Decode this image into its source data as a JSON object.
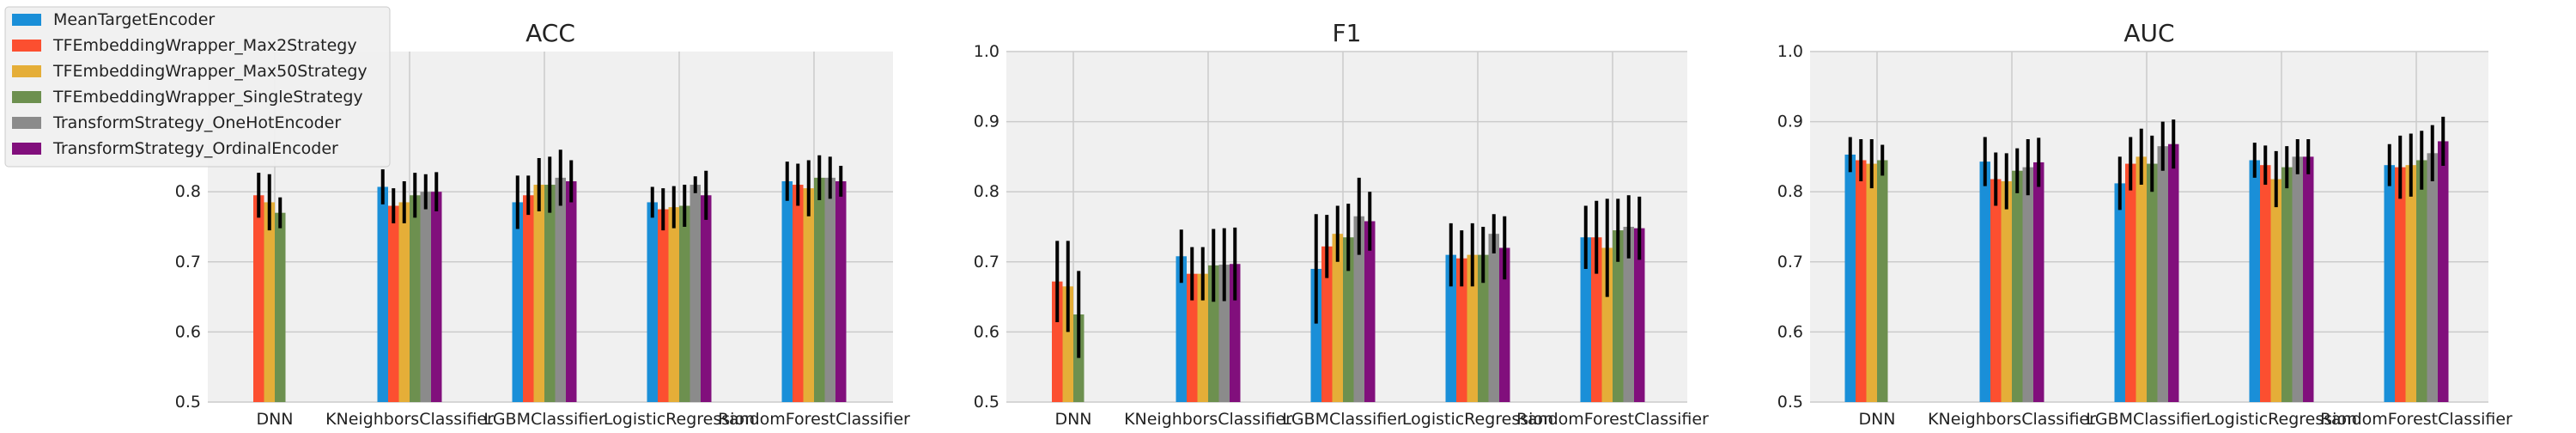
{
  "colors": {
    "MeanTargetEncoder": "#1a8fd8",
    "TFEmbeddingWrapper_Max2Strategy": "#fc4f30",
    "TFEmbeddingWrapper_Max50Strategy": "#e5ae38",
    "TFEmbeddingWrapper_SingleStrategy": "#6d904f",
    "TransformStrategy_OneHotEncoder": "#8b8b8b",
    "TransformStrategy_OrdinalEncoder": "#810f7c",
    "plot_background": "#f0f0f0",
    "grid": "#cbcbcb",
    "error_bar": "#000000"
  },
  "legend": {
    "placement": "upper-left",
    "entries": [
      "MeanTargetEncoder",
      "TFEmbeddingWrapper_Max2Strategy",
      "TFEmbeddingWrapper_Max50Strategy",
      "TFEmbeddingWrapper_SingleStrategy",
      "TransformStrategy_OneHotEncoder",
      "TransformStrategy_OrdinalEncoder"
    ]
  },
  "chart_data": [
    {
      "type": "bar",
      "title": "ACC",
      "xlabel": "",
      "ylabel": "",
      "ylim": [
        0.5,
        1.0
      ],
      "yticks": [
        "0.5",
        "0.6",
        "0.7",
        "0.8"
      ],
      "grid": true,
      "categories": [
        "DNN",
        "KNeighborsClassifier",
        "LGBMClassifier",
        "LogisticRegression",
        "RandomForestClassifier"
      ],
      "series": [
        {
          "name": "MeanTargetEncoder",
          "values": [
            null,
            0.807,
            0.785,
            0.785,
            0.815
          ],
          "errors": [
            null,
            0.025,
            0.038,
            0.022,
            0.028
          ]
        },
        {
          "name": "TFEmbeddingWrapper_Max2Strategy",
          "values": [
            0.795,
            0.78,
            0.795,
            0.775,
            0.81
          ],
          "errors": [
            0.032,
            0.025,
            0.028,
            0.03,
            0.03
          ]
        },
        {
          "name": "TFEmbeddingWrapper_Max50Strategy",
          "values": [
            0.785,
            0.785,
            0.81,
            0.778,
            0.805
          ],
          "errors": [
            0.04,
            0.03,
            0.038,
            0.03,
            0.04
          ]
        },
        {
          "name": "TFEmbeddingWrapper_SingleStrategy",
          "values": [
            0.77,
            0.795,
            0.81,
            0.78,
            0.82
          ],
          "errors": [
            0.022,
            0.032,
            0.04,
            0.03,
            0.032
          ]
        },
        {
          "name": "TransformStrategy_OneHotEncoder",
          "values": [
            null,
            0.8,
            0.82,
            0.81,
            0.82
          ],
          "errors": [
            null,
            0.025,
            0.04,
            0.012,
            0.03
          ]
        },
        {
          "name": "TransformStrategy_OrdinalEncoder",
          "values": [
            null,
            0.8,
            0.815,
            0.795,
            0.815
          ],
          "errors": [
            null,
            0.028,
            0.03,
            0.035,
            0.022
          ]
        }
      ]
    },
    {
      "type": "bar",
      "title": "F1",
      "xlabel": "",
      "ylabel": "",
      "ylim": [
        0.5,
        1.0
      ],
      "yticks": [
        "0.5",
        "0.6",
        "0.7",
        "0.8",
        "0.9",
        "1.0"
      ],
      "grid": true,
      "categories": [
        "DNN",
        "KNeighborsClassifier",
        "LGBMClassifier",
        "LogisticRegression",
        "RandomForestClassifier"
      ],
      "series": [
        {
          "name": "MeanTargetEncoder",
          "values": [
            null,
            0.708,
            0.69,
            0.71,
            0.735
          ],
          "errors": [
            null,
            0.038,
            0.078,
            0.045,
            0.045
          ]
        },
        {
          "name": "TFEmbeddingWrapper_Max2Strategy",
          "values": [
            0.672,
            0.683,
            0.722,
            0.705,
            0.735
          ],
          "errors": [
            0.058,
            0.038,
            0.045,
            0.04,
            0.052
          ]
        },
        {
          "name": "TFEmbeddingWrapper_Max50Strategy",
          "values": [
            0.665,
            0.683,
            0.74,
            0.71,
            0.72
          ],
          "errors": [
            0.065,
            0.038,
            0.04,
            0.045,
            0.07
          ]
        },
        {
          "name": "TFEmbeddingWrapper_SingleStrategy",
          "values": [
            0.625,
            0.695,
            0.735,
            0.71,
            0.745
          ],
          "errors": [
            0.062,
            0.052,
            0.048,
            0.04,
            0.045
          ]
        },
        {
          "name": "TransformStrategy_OneHotEncoder",
          "values": [
            null,
            0.696,
            0.765,
            0.74,
            0.75
          ],
          "errors": [
            null,
            0.052,
            0.055,
            0.028,
            0.045
          ]
        },
        {
          "name": "TransformStrategy_OrdinalEncoder",
          "values": [
            null,
            0.697,
            0.758,
            0.72,
            0.748
          ],
          "errors": [
            null,
            0.052,
            0.042,
            0.045,
            0.045
          ]
        }
      ]
    },
    {
      "type": "bar",
      "title": "AUC",
      "xlabel": "",
      "ylabel": "",
      "ylim": [
        0.5,
        1.0
      ],
      "yticks": [
        "0.5",
        "0.6",
        "0.7",
        "0.8",
        "0.9",
        "1.0"
      ],
      "grid": true,
      "categories": [
        "DNN",
        "KNeighborsClassifier",
        "LGBMClassifier",
        "LogisticRegression",
        "RandomForestClassifier"
      ],
      "series": [
        {
          "name": "MeanTargetEncoder",
          "values": [
            0.853,
            0.843,
            0.812,
            0.845,
            0.838
          ],
          "errors": [
            0.025,
            0.035,
            0.038,
            0.025,
            0.03
          ]
        },
        {
          "name": "TFEmbeddingWrapper_Max2Strategy",
          "values": [
            0.845,
            0.818,
            0.84,
            0.838,
            0.835
          ],
          "errors": [
            0.03,
            0.038,
            0.038,
            0.028,
            0.045
          ]
        },
        {
          "name": "TFEmbeddingWrapper_Max50Strategy",
          "values": [
            0.84,
            0.815,
            0.85,
            0.818,
            0.838
          ],
          "errors": [
            0.035,
            0.04,
            0.04,
            0.04,
            0.045
          ]
        },
        {
          "name": "TFEmbeddingWrapper_SingleStrategy",
          "values": [
            0.845,
            0.83,
            0.84,
            0.835,
            0.845
          ],
          "errors": [
            0.022,
            0.032,
            0.04,
            0.03,
            0.042
          ]
        },
        {
          "name": "TransformStrategy_OneHotEncoder",
          "values": [
            null,
            0.835,
            0.865,
            0.85,
            0.855
          ],
          "errors": [
            null,
            0.04,
            0.035,
            0.025,
            0.04
          ]
        },
        {
          "name": "TransformStrategy_OrdinalEncoder",
          "values": [
            null,
            0.842,
            0.868,
            0.85,
            0.872
          ],
          "errors": [
            null,
            0.035,
            0.035,
            0.025,
            0.035
          ]
        }
      ]
    }
  ]
}
